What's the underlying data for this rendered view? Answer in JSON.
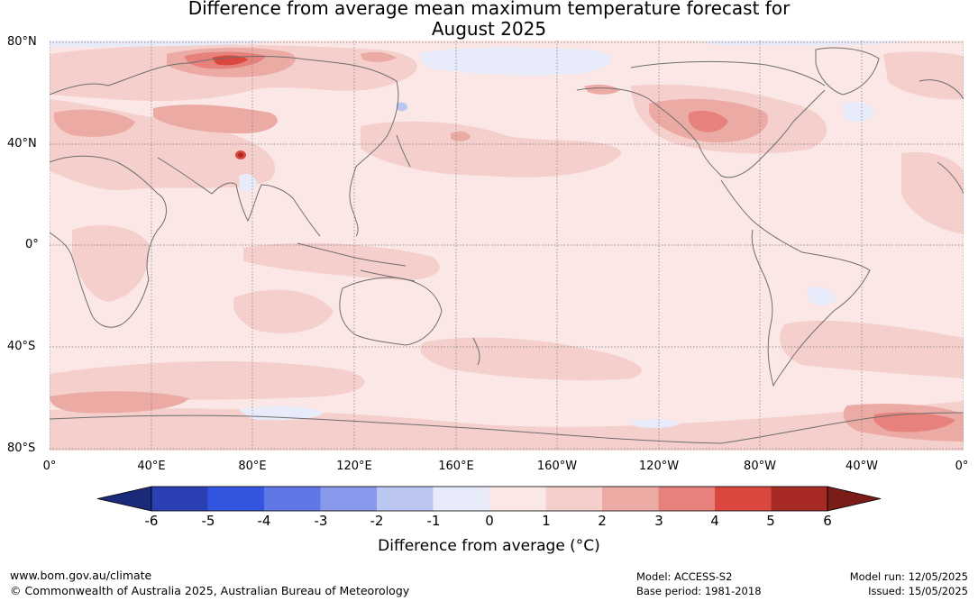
{
  "title": {
    "line1": "Difference from average mean maximum temperature forecast for",
    "line2": "August 2025"
  },
  "map": {
    "lat_labels": [
      "80°N",
      "40°N",
      "0°",
      "40°S",
      "80°S"
    ],
    "lon_labels": [
      "0°",
      "40°E",
      "80°E",
      "120°E",
      "160°E",
      "160°W",
      "120°W",
      "80°W",
      "40°W",
      "0°"
    ],
    "background_color": "#fbe8e6",
    "coastline_color": "#6e6e6e"
  },
  "colorbar": {
    "label": "Difference from average (°C)",
    "ticks": [
      "-6",
      "-5",
      "-4",
      "-3",
      "-2",
      "-1",
      "0",
      "1",
      "2",
      "3",
      "4",
      "5",
      "6"
    ],
    "under_color": "#1b2a78",
    "over_color": "#7a1c17",
    "colors": [
      "#2b40b3",
      "#3355e0",
      "#5f78e6",
      "#8898eb",
      "#bcc6f2",
      "#e8ebfa",
      "#fbe8e6",
      "#f4cfcc",
      "#ecaaa5",
      "#e6827b",
      "#d9473f",
      "#a82a24"
    ]
  },
  "footer": {
    "website": "www.bom.gov.au/climate",
    "copyright": "© Commonwealth of Australia 2025, Australian Bureau of Meteorology",
    "model": "Model: ACCESS-S2",
    "base_period": "Base period: 1981-2018",
    "model_run": "Model run: 12/05/2025",
    "issued": "Issued: 15/05/2025"
  }
}
